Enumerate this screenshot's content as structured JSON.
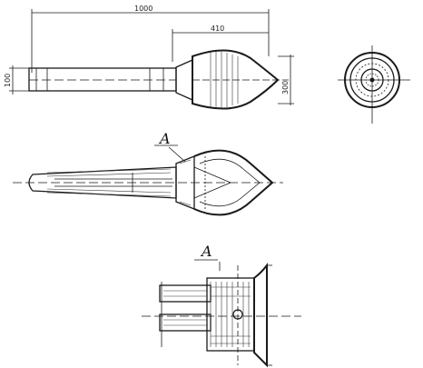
{
  "drawing": {
    "dimensions": {
      "overall_length": "1000",
      "head_length": "410",
      "body_diameter": "100",
      "head_diameter": "300"
    },
    "section_label_top": "A",
    "section_label_bottom": "A",
    "colors": {
      "ink": "#1a1a1a",
      "paper": "#ffffff"
    }
  }
}
